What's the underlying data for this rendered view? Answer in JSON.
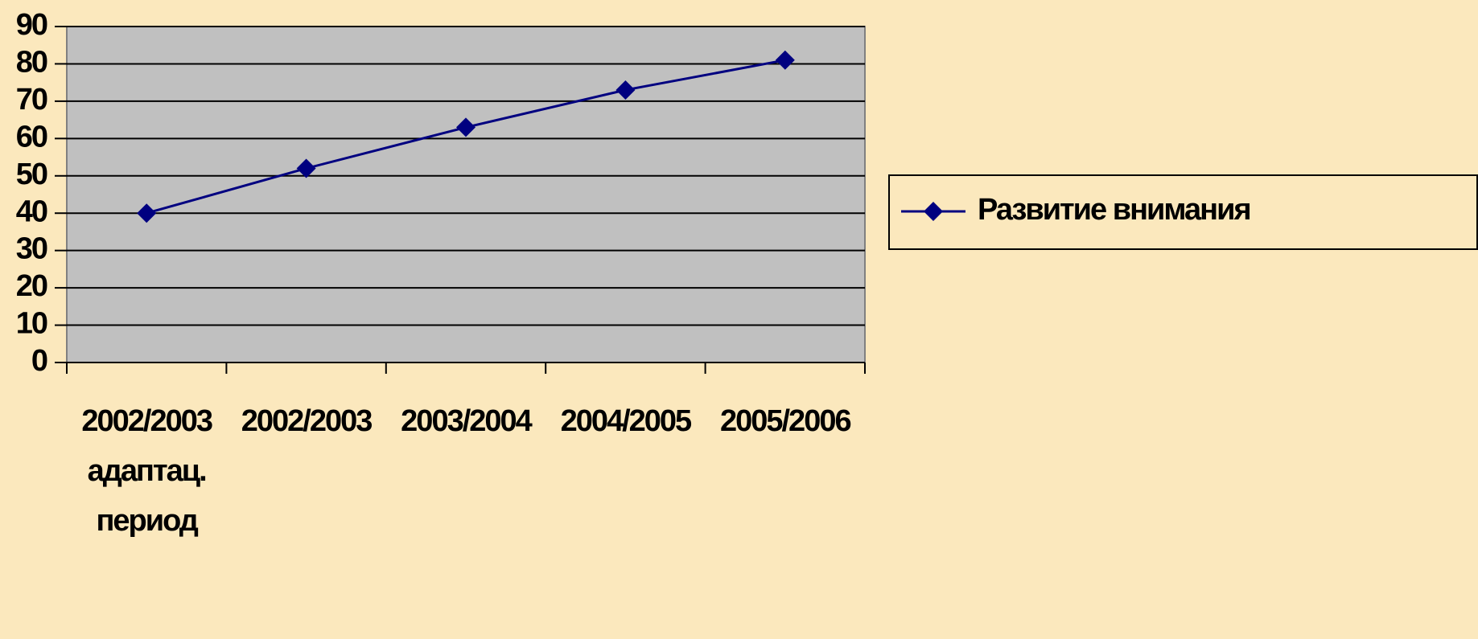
{
  "chart_data": {
    "type": "line",
    "categories": [
      "2002/2003\nадаптац.\nпериод",
      "2002/2003",
      "2003/2004",
      "2004/2005",
      "2005/2006"
    ],
    "series": [
      {
        "name": "Развитие внимания",
        "color": "#000080",
        "values": [
          40,
          52,
          63,
          73,
          81
        ]
      }
    ],
    "ylim": [
      0,
      90
    ],
    "yticks": [
      0,
      10,
      20,
      30,
      40,
      50,
      60,
      70,
      80,
      90
    ],
    "grid": true,
    "legend": "right"
  }
}
